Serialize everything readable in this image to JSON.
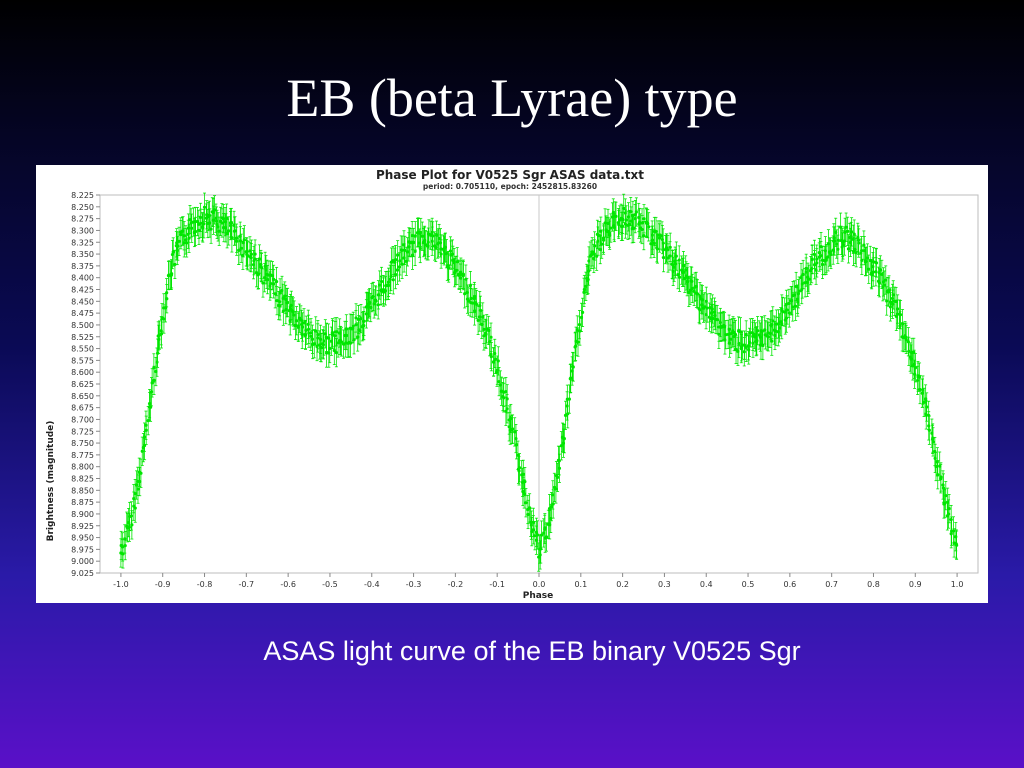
{
  "slide": {
    "title": "EB (beta Lyrae) type",
    "caption": "ASAS light curve of the EB binary V0525 Sgr"
  },
  "chart_data": {
    "type": "scatter",
    "title": "Phase Plot for V0525 Sgr ASAS data.txt",
    "subtitle": "period: 0.705110, epoch: 2452815.83260",
    "xlabel": "Phase",
    "ylabel": "Brightness (magnitude)",
    "xlim": [
      -1.05,
      1.05
    ],
    "ylim": [
      9.025,
      8.225
    ],
    "y_inverted": true,
    "x_ticks": [
      "-1.0",
      "-0.9",
      "-0.8",
      "-0.7",
      "-0.6",
      "-0.5",
      "-0.4",
      "-0.3",
      "-0.2",
      "-0.1",
      "0.0",
      "0.1",
      "0.2",
      "0.3",
      "0.4",
      "0.5",
      "0.6",
      "0.7",
      "0.8",
      "0.9",
      "1.0"
    ],
    "y_ticks": [
      "8.225",
      "8.250",
      "8.275",
      "8.300",
      "8.325",
      "8.350",
      "8.375",
      "8.400",
      "8.425",
      "8.450",
      "8.475",
      "8.500",
      "8.525",
      "8.550",
      "8.575",
      "8.600",
      "8.625",
      "8.650",
      "8.675",
      "8.700",
      "8.725",
      "8.750",
      "8.775",
      "8.800",
      "8.825",
      "8.850",
      "8.875",
      "8.900",
      "8.925",
      "8.950",
      "8.975",
      "9.000",
      "9.025"
    ],
    "marker_color": "#00e600",
    "error_bar": 0.03,
    "phase_curve": [
      [
        0.0,
        8.98
      ],
      [
        0.02,
        8.93
      ],
      [
        0.04,
        8.84
      ],
      [
        0.06,
        8.73
      ],
      [
        0.08,
        8.6
      ],
      [
        0.1,
        8.48
      ],
      [
        0.12,
        8.38
      ],
      [
        0.14,
        8.33
      ],
      [
        0.17,
        8.29
      ],
      [
        0.2,
        8.27
      ],
      [
        0.23,
        8.28
      ],
      [
        0.26,
        8.3
      ],
      [
        0.3,
        8.34
      ],
      [
        0.34,
        8.39
      ],
      [
        0.38,
        8.44
      ],
      [
        0.42,
        8.49
      ],
      [
        0.46,
        8.53
      ],
      [
        0.5,
        8.54
      ],
      [
        0.54,
        8.53
      ],
      [
        0.58,
        8.49
      ],
      [
        0.62,
        8.43
      ],
      [
        0.66,
        8.37
      ],
      [
        0.7,
        8.33
      ],
      [
        0.73,
        8.31
      ],
      [
        0.76,
        8.33
      ],
      [
        0.8,
        8.38
      ],
      [
        0.84,
        8.44
      ],
      [
        0.88,
        8.53
      ],
      [
        0.91,
        8.62
      ],
      [
        0.94,
        8.74
      ],
      [
        0.97,
        8.87
      ],
      [
        1.0,
        8.98
      ]
    ],
    "x_range_plotted": [
      -1.0,
      1.0
    ],
    "grid": false
  }
}
